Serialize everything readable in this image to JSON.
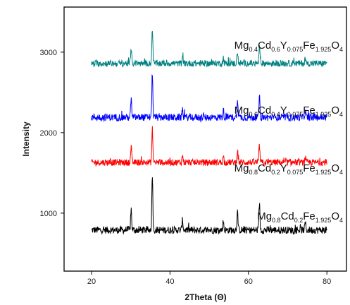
{
  "chart_data": {
    "type": "line",
    "title": "",
    "xlabel": "2Theta (Θ)",
    "ylabel": "Intensity",
    "xlim": [
      13,
      85
    ],
    "ylim": [
      280,
      3560
    ],
    "xticks": [
      "20",
      "40",
      "60",
      "80"
    ],
    "yticks": [
      "1000",
      "2000",
      "3000"
    ],
    "grid": false,
    "legend": "none",
    "x_start": 20,
    "x_end": 80,
    "series": [
      {
        "color": "#000000",
        "baseline": 790,
        "noise": 45,
        "peaks": [
          [
            30.1,
            260
          ],
          [
            35.5,
            700
          ],
          [
            43.2,
            130
          ],
          [
            53.6,
            110
          ],
          [
            57.2,
            250
          ],
          [
            62.8,
            330
          ],
          [
            74.5,
            90
          ]
        ]
      },
      {
        "color": "#ff0000",
        "baseline": 1630,
        "noise": 40,
        "peaks": [
          [
            30.1,
            200
          ],
          [
            35.5,
            420
          ],
          [
            43.2,
            90
          ],
          [
            53.6,
            80
          ],
          [
            57.2,
            160
          ],
          [
            62.8,
            210
          ],
          [
            74.5,
            60
          ]
        ]
      },
      {
        "color": "#0000ff",
        "baseline": 2190,
        "noise": 45,
        "peaks": [
          [
            30.1,
            230
          ],
          [
            35.5,
            560
          ],
          [
            43.2,
            110
          ],
          [
            53.6,
            90
          ],
          [
            57.2,
            200
          ],
          [
            62.8,
            260
          ],
          [
            74.5,
            80
          ]
        ]
      },
      {
        "color": "#008080",
        "baseline": 2860,
        "noise": 40,
        "peaks": [
          [
            30.1,
            180
          ],
          [
            35.5,
            440
          ],
          [
            43.2,
            80
          ],
          [
            53.6,
            70
          ],
          [
            57.2,
            150
          ],
          [
            62.8,
            200
          ],
          [
            74.5,
            60
          ]
        ]
      }
    ],
    "annotations": [
      {
        "parts": [
          [
            "Mg",
            ""
          ],
          [
            "0.8",
            "sub"
          ],
          [
            "Cd",
            ""
          ],
          [
            "0.2",
            "sub"
          ],
          [
            "Fe",
            ""
          ],
          [
            "1.925",
            "sub"
          ],
          [
            "O",
            ""
          ],
          [
            "4",
            "sub"
          ]
        ]
      },
      {
        "parts": [
          [
            "Mg",
            ""
          ],
          [
            "0.8",
            "sub"
          ],
          [
            "Cd",
            ""
          ],
          [
            "0.2",
            "sub"
          ],
          [
            "Y",
            ""
          ],
          [
            "0.075",
            "sub"
          ],
          [
            "Fe",
            ""
          ],
          [
            "1.925",
            "sub"
          ],
          [
            "O",
            ""
          ],
          [
            "4",
            "sub"
          ]
        ]
      },
      {
        "parts": [
          [
            "Mg",
            ""
          ],
          [
            "0.6",
            "sub"
          ],
          [
            "Cd",
            ""
          ],
          [
            "0.4",
            "sub"
          ],
          [
            "Y",
            ""
          ],
          [
            "0.075",
            "sub"
          ],
          [
            "Fe",
            ""
          ],
          [
            "1.925",
            "sub"
          ],
          [
            "O",
            ""
          ],
          [
            "4",
            "sub"
          ]
        ]
      },
      {
        "parts": [
          [
            "Mg",
            ""
          ],
          [
            "0.4",
            "sub"
          ],
          [
            "Cd",
            ""
          ],
          [
            "0.6",
            "sub"
          ],
          [
            "Y",
            ""
          ],
          [
            "0.075",
            "sub"
          ],
          [
            "Fe",
            ""
          ],
          [
            "1.925",
            "sub"
          ],
          [
            "O",
            ""
          ],
          [
            "4",
            "sub"
          ]
        ]
      }
    ]
  }
}
